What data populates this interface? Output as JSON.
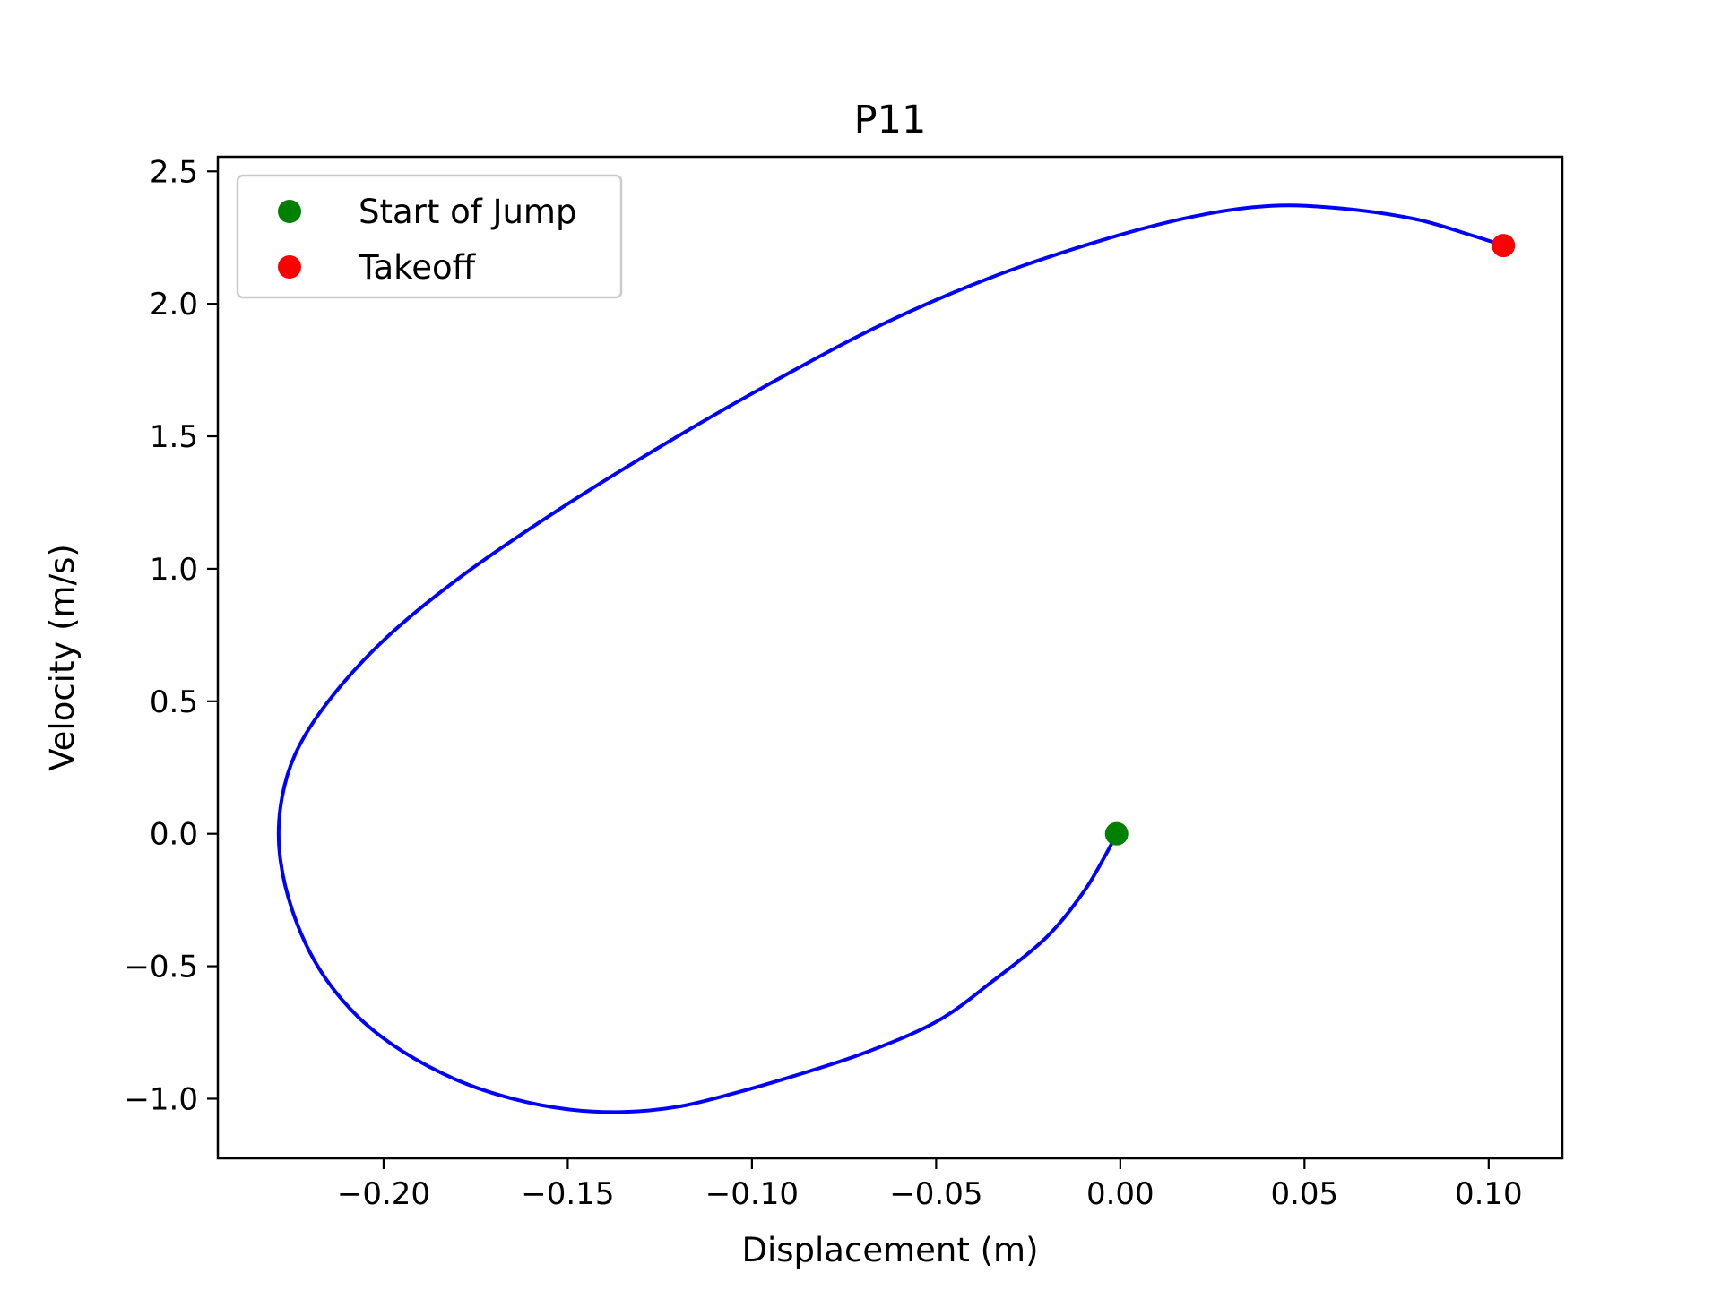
{
  "chart_data": {
    "type": "line",
    "title": "P11",
    "xlabel": "Displacement (m)",
    "ylabel": "Velocity (m/s)",
    "xlim": [
      -0.245,
      0.12
    ],
    "ylim": [
      -1.225,
      2.555
    ],
    "xticks": [
      -0.2,
      -0.15,
      -0.1,
      -0.05,
      0.0,
      0.05,
      0.1
    ],
    "xtick_labels": [
      "−0.20",
      "−0.15",
      "−0.10",
      "−0.05",
      "0.00",
      "0.05",
      "0.10"
    ],
    "yticks": [
      -1.0,
      -0.5,
      0.0,
      0.5,
      1.0,
      1.5,
      2.0,
      2.5
    ],
    "ytick_labels": [
      "−1.0",
      "−0.5",
      "0.0",
      "0.5",
      "1.0",
      "1.5",
      "2.0",
      "2.5"
    ],
    "grid": false,
    "legend": {
      "placement": "top-left"
    },
    "series": [
      {
        "color": "#0000ff",
        "x": [
          -0.001,
          -0.004,
          -0.01,
          -0.02,
          -0.035,
          -0.05,
          -0.07,
          -0.09,
          -0.105,
          -0.12,
          -0.135,
          -0.15,
          -0.165,
          -0.18,
          -0.195,
          -0.207,
          -0.217,
          -0.224,
          -0.228,
          -0.228,
          -0.224,
          -0.215,
          -0.2,
          -0.18,
          -0.155,
          -0.125,
          -0.095,
          -0.065,
          -0.035,
          -0.005,
          0.02,
          0.041,
          0.06,
          0.08,
          0.095,
          0.104
        ],
        "y": [
          0.0,
          -0.08,
          -0.22,
          -0.39,
          -0.56,
          -0.71,
          -0.83,
          -0.92,
          -0.98,
          -1.03,
          -1.05,
          -1.04,
          -1.0,
          -0.93,
          -0.82,
          -0.69,
          -0.52,
          -0.32,
          -0.1,
          0.1,
          0.3,
          0.5,
          0.73,
          0.96,
          1.2,
          1.46,
          1.7,
          1.92,
          2.1,
          2.24,
          2.33,
          2.37,
          2.36,
          2.32,
          2.26,
          2.22
        ]
      },
      {
        "name": "Start of Jump",
        "type": "scatter",
        "color": "#008000",
        "x": [
          -0.001
        ],
        "y": [
          0.0
        ]
      },
      {
        "name": "Takeoff",
        "type": "scatter",
        "color": "#ff0000",
        "x": [
          0.104
        ],
        "y": [
          2.22
        ]
      }
    ]
  }
}
